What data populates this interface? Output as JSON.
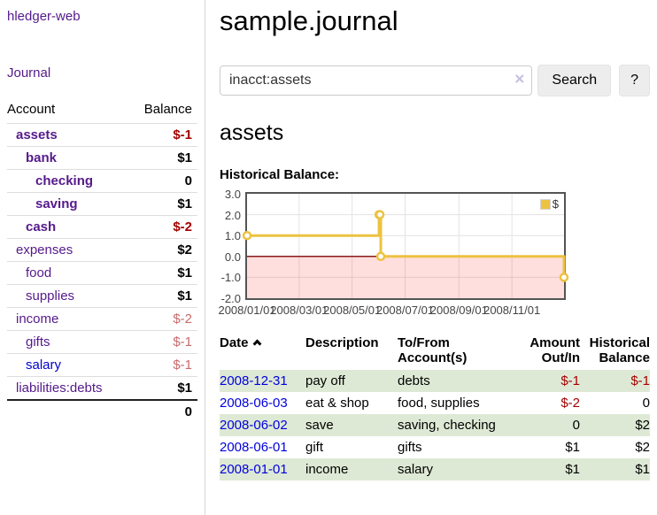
{
  "app": {
    "brand": "hledger-web",
    "nav": {
      "journal": "Journal"
    }
  },
  "colors": {
    "link_purple": "#551a8b",
    "link_blue": "#0000cc",
    "negative": "#a40000",
    "negative_muted": "#c66b6b",
    "row_stripe_green": "#dee9d5",
    "chart_line": "#edc240",
    "chart_negative_region": "#fbdada",
    "chart_zero_line": "#8b1a1a"
  },
  "sidebar": {
    "header": {
      "account": "Account",
      "balance": "Balance"
    },
    "accounts": [
      {
        "name": "assets",
        "balance": "$-1",
        "indent": 1,
        "bold": true,
        "balance_style": "neg"
      },
      {
        "name": "bank",
        "balance": "$1",
        "indent": 2,
        "bold": true,
        "balance_style": "pos"
      },
      {
        "name": "checking",
        "balance": "0",
        "indent": 3,
        "bold": true,
        "balance_style": "pos"
      },
      {
        "name": "saving",
        "balance": "$1",
        "indent": 3,
        "bold": true,
        "balance_style": "pos"
      },
      {
        "name": "cash",
        "balance": "$-2",
        "indent": 2,
        "bold": true,
        "balance_style": "neg"
      },
      {
        "name": "expenses",
        "balance": "$2",
        "indent": 1,
        "bold": false,
        "balance_style": "pos"
      },
      {
        "name": "food",
        "balance": "$1",
        "indent": 2,
        "bold": false,
        "balance_style": "pos"
      },
      {
        "name": "supplies",
        "balance": "$1",
        "indent": 2,
        "bold": false,
        "balance_style": "pos"
      },
      {
        "name": "income",
        "balance": "$-2",
        "indent": 1,
        "bold": false,
        "balance_style": "neg-muted"
      },
      {
        "name": "gifts",
        "balance": "$-1",
        "indent": 2,
        "bold": false,
        "balance_style": "neg-muted"
      },
      {
        "name": "salary",
        "balance": "$-1",
        "indent": 2,
        "bold": false,
        "balance_style": "neg-muted",
        "link_color": "blue"
      },
      {
        "name": "liabilities:debts",
        "balance": "$1",
        "indent": 1,
        "bold": false,
        "balance_style": "pos"
      }
    ],
    "total": "0"
  },
  "main": {
    "title": "sample.journal",
    "account_heading": "assets",
    "chart_label": "Historical Balance:"
  },
  "search": {
    "value": "inacct:assets",
    "clear": "×",
    "submit": "Search",
    "help": "?"
  },
  "chart_data": {
    "type": "line",
    "step": true,
    "title": "Historical Balance:",
    "legend_position": "top-right",
    "grid": true,
    "negative_region_highlighted": true,
    "xlim": [
      "2008-01-01",
      "2008-12-31"
    ],
    "ylim": [
      -2,
      3
    ],
    "y_ticks": [
      3.0,
      2.0,
      1.0,
      0.0,
      -1.0,
      -2.0
    ],
    "x_ticks": [
      "2008/01/01",
      "2008/03/01",
      "2008/05/01",
      "2008/07/01",
      "2008/09/01",
      "2008/11/01"
    ],
    "series": [
      {
        "name": "$",
        "color": "#edc240",
        "points": [
          {
            "date": "2008-01-01",
            "value": 1
          },
          {
            "date": "2008-06-01",
            "value": 2
          },
          {
            "date": "2008-06-02",
            "value": 2
          },
          {
            "date": "2008-06-03",
            "value": 0
          },
          {
            "date": "2008-12-31",
            "value": -1
          }
        ]
      }
    ]
  },
  "register": {
    "columns": [
      "Date",
      "Description",
      "To/From Account(s)",
      "Amount Out/In",
      "Historical Balance"
    ],
    "rows": [
      {
        "date": "2008-12-31",
        "description": "pay off",
        "accounts": "debts",
        "amount": "$-1",
        "amount_neg": true,
        "balance": "$-1",
        "balance_neg": true
      },
      {
        "date": "2008-06-03",
        "description": "eat & shop",
        "accounts": "food, supplies",
        "amount": "$-2",
        "amount_neg": true,
        "balance": "0",
        "balance_neg": false
      },
      {
        "date": "2008-06-02",
        "description": "save",
        "accounts": "saving, checking",
        "amount": "0",
        "amount_neg": false,
        "balance": "$2",
        "balance_neg": false
      },
      {
        "date": "2008-06-01",
        "description": "gift",
        "accounts": "gifts",
        "amount": "$1",
        "amount_neg": false,
        "balance": "$2",
        "balance_neg": false
      },
      {
        "date": "2008-01-01",
        "description": "income",
        "accounts": "salary",
        "amount": "$1",
        "amount_neg": false,
        "balance": "$1",
        "balance_neg": false
      }
    ]
  }
}
